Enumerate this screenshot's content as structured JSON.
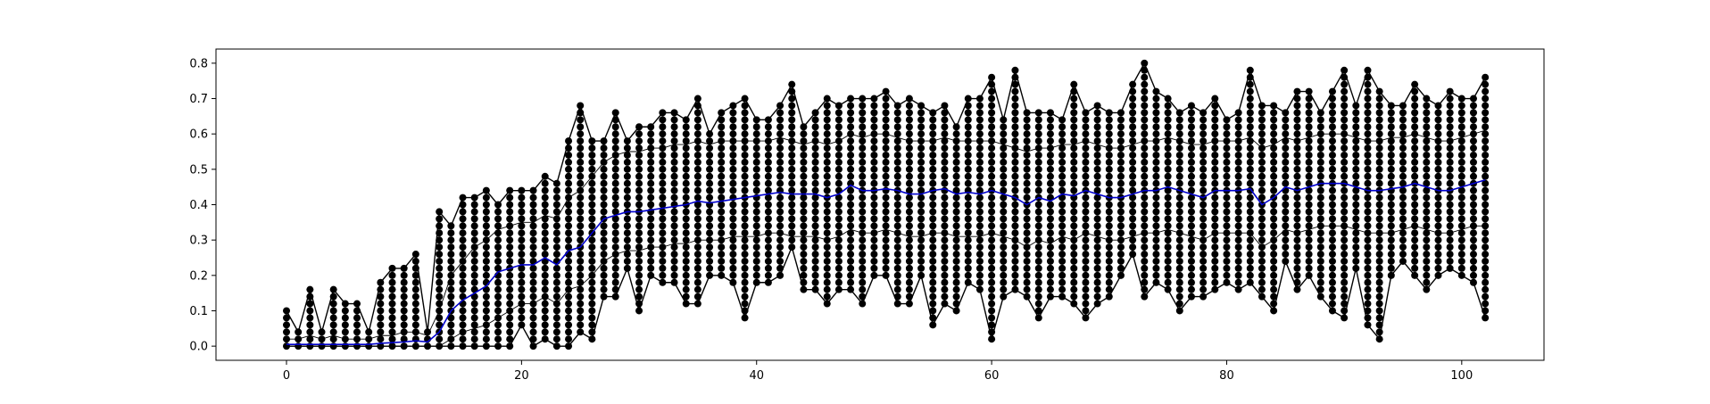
{
  "chart_data": {
    "type": "scatter",
    "title": "",
    "xlabel": "",
    "ylabel": "",
    "xlim": [
      -6,
      107
    ],
    "ylim": [
      -0.04,
      0.84
    ],
    "x_ticks": [
      0,
      20,
      40,
      60,
      80,
      100
    ],
    "x_tick_labels": [
      "0",
      "20",
      "40",
      "60",
      "80",
      "100"
    ],
    "y_ticks": [
      0.0,
      0.1,
      0.2,
      0.3,
      0.4,
      0.5,
      0.6,
      0.7,
      0.8
    ],
    "y_tick_labels": [
      "0.0",
      "0.1",
      "0.2",
      "0.3",
      "0.4",
      "0.5",
      "0.6",
      "0.7",
      "0.8"
    ],
    "grid": false,
    "legend": "none",
    "point_step": 0.02,
    "x": [
      0,
      1,
      2,
      3,
      4,
      5,
      6,
      7,
      8,
      9,
      10,
      11,
      12,
      13,
      14,
      15,
      16,
      17,
      18,
      19,
      20,
      21,
      22,
      23,
      24,
      25,
      26,
      27,
      28,
      29,
      30,
      31,
      32,
      33,
      34,
      35,
      36,
      37,
      38,
      39,
      40,
      41,
      42,
      43,
      44,
      45,
      46,
      47,
      48,
      49,
      50,
      51,
      52,
      53,
      54,
      55,
      56,
      57,
      58,
      59,
      60,
      61,
      62,
      63,
      64,
      65,
      66,
      67,
      68,
      69,
      70,
      71,
      72,
      73,
      74,
      75,
      76,
      77,
      78,
      79,
      80,
      81,
      82,
      83,
      84,
      85,
      86,
      87,
      88,
      89,
      90,
      91,
      92,
      93,
      94,
      95,
      96,
      97,
      98,
      99,
      100,
      101,
      102
    ],
    "series": [
      {
        "role": "max",
        "color": "#000000",
        "values": [
          0.1,
          0.04,
          0.16,
          0.04,
          0.16,
          0.12,
          0.12,
          0.04,
          0.18,
          0.22,
          0.22,
          0.26,
          0.04,
          0.38,
          0.34,
          0.42,
          0.42,
          0.44,
          0.4,
          0.44,
          0.44,
          0.44,
          0.48,
          0.46,
          0.58,
          0.68,
          0.58,
          0.58,
          0.66,
          0.58,
          0.62,
          0.62,
          0.66,
          0.66,
          0.64,
          0.7,
          0.6,
          0.66,
          0.68,
          0.7,
          0.64,
          0.64,
          0.68,
          0.74,
          0.62,
          0.66,
          0.7,
          0.68,
          0.7,
          0.7,
          0.7,
          0.72,
          0.68,
          0.7,
          0.68,
          0.66,
          0.68,
          0.62,
          0.7,
          0.7,
          0.76,
          0.64,
          0.78,
          0.66,
          0.66,
          0.66,
          0.64,
          0.74,
          0.66,
          0.68,
          0.66,
          0.66,
          0.74,
          0.8,
          0.72,
          0.7,
          0.66,
          0.68,
          0.66,
          0.7,
          0.64,
          0.66,
          0.78,
          0.68,
          0.68,
          0.66,
          0.72,
          0.72,
          0.66,
          0.72,
          0.78,
          0.68,
          0.78,
          0.72,
          0.68,
          0.68,
          0.74,
          0.7,
          0.68,
          0.72,
          0.7,
          0.7,
          0.76
        ]
      },
      {
        "role": "min",
        "color": "#000000",
        "values": [
          0.0,
          0.0,
          0.0,
          0.0,
          0.0,
          0.0,
          0.0,
          0.0,
          0.0,
          0.0,
          0.0,
          0.0,
          0.0,
          0.0,
          0.0,
          0.0,
          0.0,
          0.0,
          0.0,
          0.0,
          0.06,
          0.0,
          0.02,
          0.0,
          0.0,
          0.04,
          0.02,
          0.14,
          0.14,
          0.22,
          0.1,
          0.2,
          0.18,
          0.18,
          0.12,
          0.12,
          0.2,
          0.2,
          0.18,
          0.08,
          0.18,
          0.18,
          0.2,
          0.28,
          0.16,
          0.16,
          0.12,
          0.16,
          0.16,
          0.12,
          0.2,
          0.2,
          0.12,
          0.12,
          0.2,
          0.06,
          0.12,
          0.1,
          0.18,
          0.16,
          0.02,
          0.14,
          0.16,
          0.14,
          0.08,
          0.14,
          0.14,
          0.12,
          0.08,
          0.12,
          0.14,
          0.2,
          0.26,
          0.14,
          0.18,
          0.16,
          0.1,
          0.14,
          0.14,
          0.16,
          0.18,
          0.16,
          0.18,
          0.14,
          0.1,
          0.24,
          0.16,
          0.2,
          0.14,
          0.1,
          0.08,
          0.22,
          0.06,
          0.02,
          0.2,
          0.24,
          0.2,
          0.16,
          0.2,
          0.22,
          0.2,
          0.18,
          0.08
        ]
      },
      {
        "role": "mean",
        "color": "#0000cc",
        "values": [
          0.005,
          0.005,
          0.005,
          0.005,
          0.005,
          0.005,
          0.005,
          0.005,
          0.008,
          0.01,
          0.012,
          0.015,
          0.012,
          0.04,
          0.1,
          0.13,
          0.15,
          0.17,
          0.21,
          0.22,
          0.23,
          0.23,
          0.25,
          0.23,
          0.27,
          0.28,
          0.32,
          0.36,
          0.37,
          0.38,
          0.38,
          0.385,
          0.39,
          0.395,
          0.4,
          0.41,
          0.405,
          0.41,
          0.415,
          0.42,
          0.425,
          0.43,
          0.435,
          0.43,
          0.43,
          0.43,
          0.42,
          0.43,
          0.455,
          0.44,
          0.44,
          0.445,
          0.44,
          0.43,
          0.43,
          0.44,
          0.445,
          0.43,
          0.435,
          0.43,
          0.44,
          0.43,
          0.42,
          0.4,
          0.42,
          0.41,
          0.43,
          0.425,
          0.44,
          0.43,
          0.42,
          0.42,
          0.43,
          0.44,
          0.44,
          0.45,
          0.44,
          0.43,
          0.42,
          0.44,
          0.44,
          0.44,
          0.445,
          0.4,
          0.42,
          0.45,
          0.44,
          0.45,
          0.46,
          0.46,
          0.46,
          0.45,
          0.44,
          0.44,
          0.445,
          0.45,
          0.46,
          0.45,
          0.44,
          0.44,
          0.45,
          0.46,
          0.47
        ]
      },
      {
        "role": "upper",
        "color": "#000000",
        "values": [
          0.02,
          0.02,
          0.03,
          0.02,
          0.03,
          0.02,
          0.02,
          0.02,
          0.03,
          0.03,
          0.04,
          0.04,
          0.03,
          0.1,
          0.2,
          0.24,
          0.28,
          0.3,
          0.33,
          0.34,
          0.35,
          0.35,
          0.37,
          0.36,
          0.42,
          0.44,
          0.48,
          0.52,
          0.54,
          0.55,
          0.55,
          0.56,
          0.56,
          0.57,
          0.57,
          0.58,
          0.57,
          0.58,
          0.58,
          0.58,
          0.58,
          0.58,
          0.59,
          0.58,
          0.57,
          0.58,
          0.57,
          0.58,
          0.6,
          0.59,
          0.6,
          0.6,
          0.59,
          0.58,
          0.58,
          0.58,
          0.59,
          0.58,
          0.58,
          0.58,
          0.58,
          0.57,
          0.56,
          0.55,
          0.56,
          0.56,
          0.57,
          0.57,
          0.58,
          0.57,
          0.56,
          0.56,
          0.57,
          0.58,
          0.58,
          0.59,
          0.58,
          0.57,
          0.57,
          0.58,
          0.58,
          0.58,
          0.59,
          0.56,
          0.57,
          0.59,
          0.58,
          0.59,
          0.6,
          0.6,
          0.6,
          0.59,
          0.58,
          0.58,
          0.59,
          0.59,
          0.6,
          0.59,
          0.58,
          0.58,
          0.59,
          0.6,
          0.61
        ]
      },
      {
        "role": "lower",
        "color": "#000000",
        "values": [
          0.0,
          0.0,
          0.0,
          0.0,
          0.0,
          0.0,
          0.0,
          0.0,
          0.0,
          0.0,
          0.0,
          0.0,
          0.0,
          0.0,
          0.02,
          0.04,
          0.05,
          0.06,
          0.08,
          0.1,
          0.12,
          0.12,
          0.14,
          0.12,
          0.16,
          0.17,
          0.2,
          0.24,
          0.26,
          0.27,
          0.27,
          0.28,
          0.28,
          0.29,
          0.29,
          0.3,
          0.3,
          0.3,
          0.31,
          0.31,
          0.31,
          0.32,
          0.32,
          0.31,
          0.31,
          0.31,
          0.3,
          0.31,
          0.33,
          0.32,
          0.32,
          0.33,
          0.32,
          0.31,
          0.31,
          0.32,
          0.32,
          0.31,
          0.31,
          0.31,
          0.32,
          0.31,
          0.3,
          0.28,
          0.3,
          0.29,
          0.31,
          0.3,
          0.32,
          0.31,
          0.3,
          0.3,
          0.31,
          0.32,
          0.32,
          0.33,
          0.32,
          0.31,
          0.3,
          0.32,
          0.32,
          0.32,
          0.32,
          0.28,
          0.3,
          0.33,
          0.32,
          0.33,
          0.34,
          0.34,
          0.34,
          0.33,
          0.32,
          0.32,
          0.32,
          0.33,
          0.34,
          0.33,
          0.32,
          0.32,
          0.33,
          0.34,
          0.34
        ]
      }
    ]
  }
}
